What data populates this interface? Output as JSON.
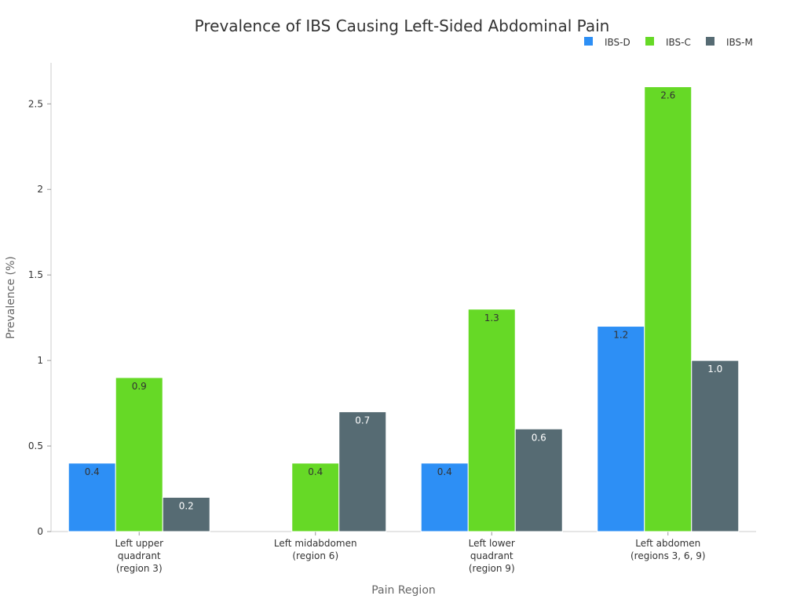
{
  "chart_data": {
    "type": "bar",
    "title": "Prevalence of IBS Causing Left-Sided Abdominal Pain",
    "xlabel": "Pain Region",
    "ylabel": "Prevalence (%)",
    "categories": [
      [
        "Left upper",
        "quadrant",
        "(region 3)"
      ],
      [
        "Left midabdomen",
        "(region 6)"
      ],
      [
        "Left lower",
        "quadrant",
        "(region 9)"
      ],
      [
        "Left abdomen",
        "(regions 3, 6, 9)"
      ]
    ],
    "series": [
      {
        "name": "IBS-D",
        "color": "#2d8ff5",
        "values": [
          0.4,
          0,
          0.4,
          1.2
        ],
        "labels": [
          "0.4",
          "",
          "0.4",
          "1.2"
        ]
      },
      {
        "name": "IBS-C",
        "color": "#66d926",
        "values": [
          0.9,
          0.4,
          1.3,
          2.6
        ],
        "labels": [
          "0.9",
          "0.4",
          "1.3",
          "2.6"
        ]
      },
      {
        "name": "IBS-M",
        "color": "#566b73",
        "values": [
          0.2,
          0.7,
          0.6,
          1.0
        ],
        "labels": [
          "0.2",
          "0.7",
          "0.6",
          "1.0"
        ]
      }
    ],
    "yticks": [
      0,
      0.5,
      1,
      1.5,
      2,
      2.5
    ],
    "ytick_labels": [
      "0",
      "0.5",
      "1",
      "1.5",
      "2",
      "2.5"
    ],
    "ylim": [
      0,
      2.74
    ],
    "grid": false,
    "legend": "top-right"
  }
}
